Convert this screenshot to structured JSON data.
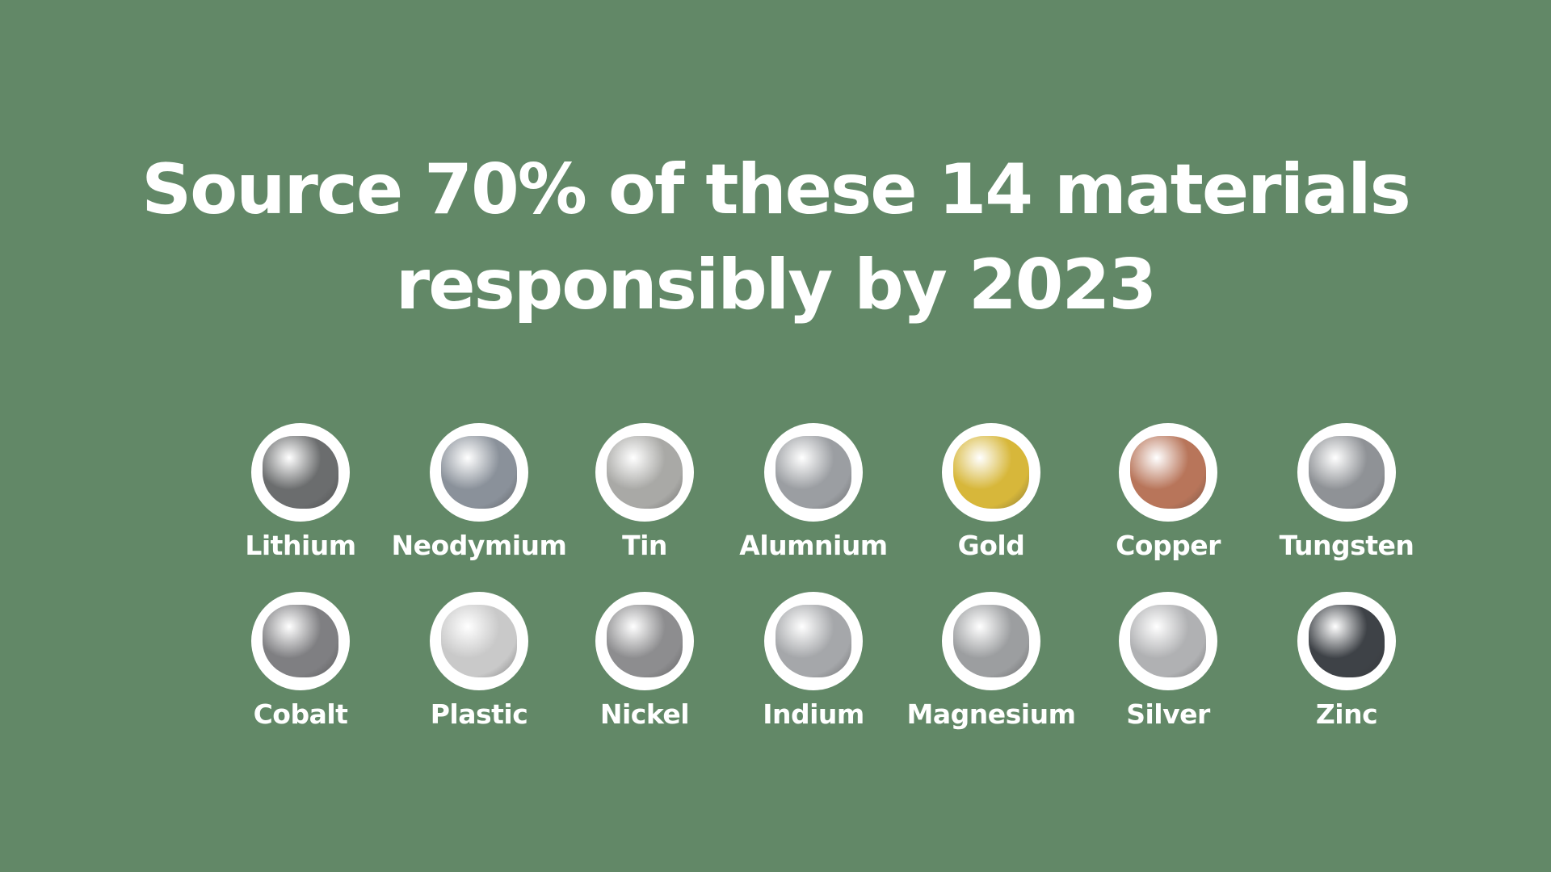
{
  "title": {
    "line1": "Source 70% of these 14 materials",
    "line2": "responsibly by 2023"
  },
  "materials": [
    {
      "name": "Lithium",
      "color": "#6b6d6e"
    },
    {
      "name": "Neodymium",
      "color": "#8a919a"
    },
    {
      "name": "Tin",
      "color": "#a9a9a6"
    },
    {
      "name": "Alumnium",
      "color": "#9b9ea2"
    },
    {
      "name": "Gold",
      "color": "#d7b73a"
    },
    {
      "name": "Copper",
      "color": "#b8755a"
    },
    {
      "name": "Tungsten",
      "color": "#8f9296"
    },
    {
      "name": "Cobalt",
      "color": "#7f7f82"
    },
    {
      "name": "Plastic",
      "color": "#c9c9c9"
    },
    {
      "name": "Nickel",
      "color": "#8d8d8f"
    },
    {
      "name": "Indium",
      "color": "#a5a7aa"
    },
    {
      "name": "Magnesium",
      "color": "#9c9ea0"
    },
    {
      "name": "Silver",
      "color": "#b0b1b3"
    },
    {
      "name": "Zinc",
      "color": "#3e4247"
    }
  ]
}
